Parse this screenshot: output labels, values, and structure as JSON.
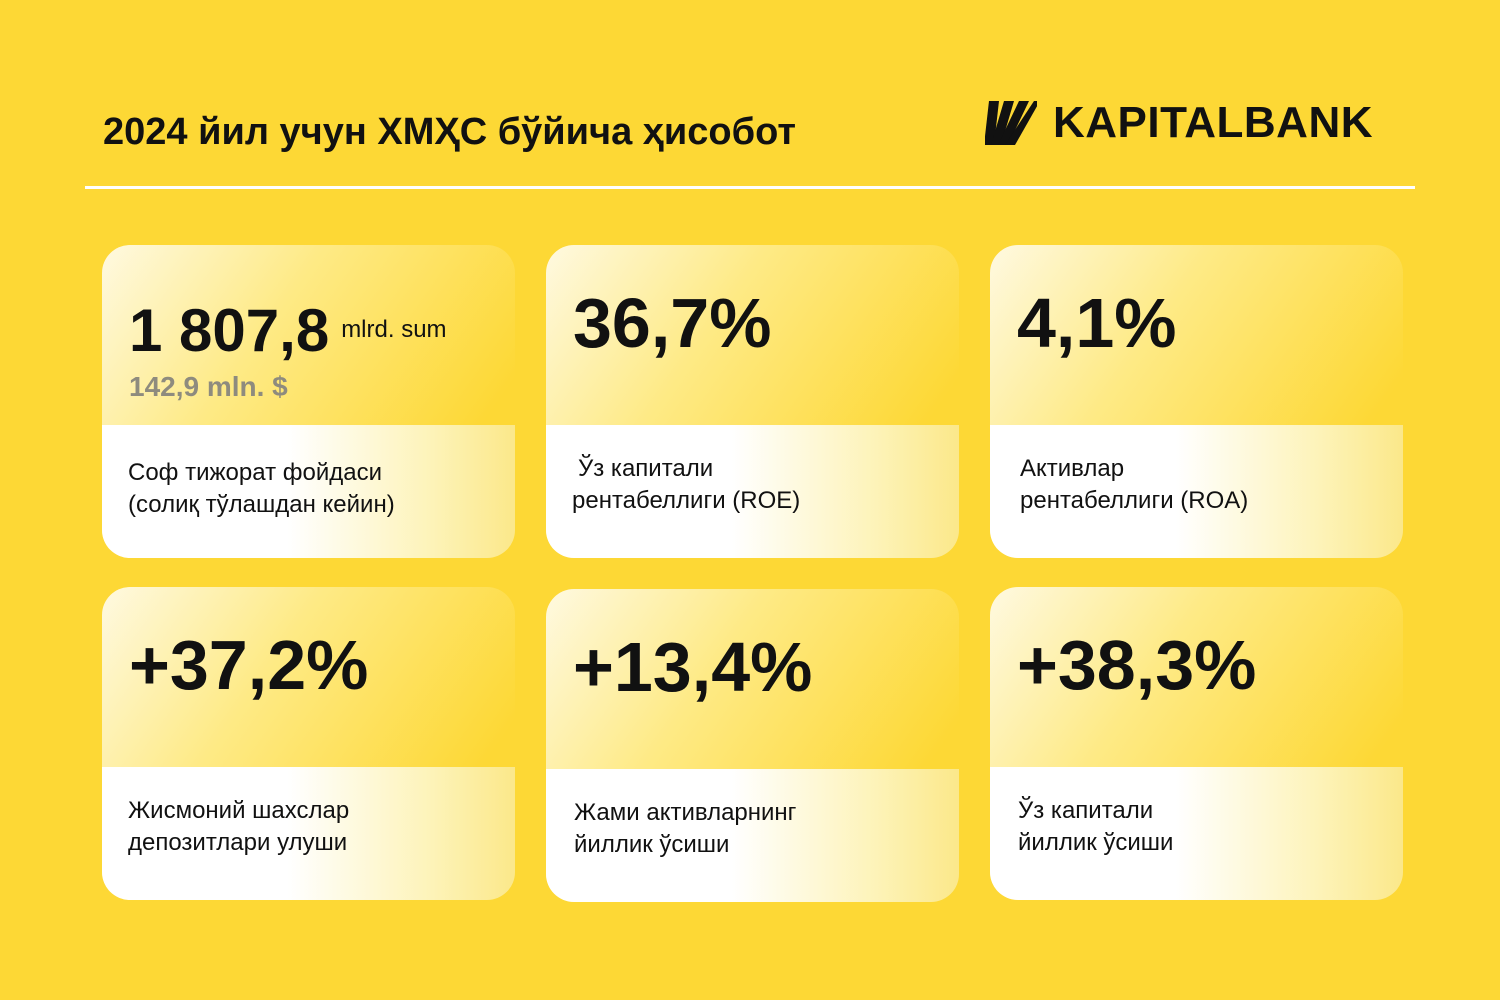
{
  "header": {
    "title": "2024 йил учун ХМҲС бўйича ҳисобот",
    "logo_text": "KAPITALBANK",
    "logo_icon": "kapitalbank-stripes-logo"
  },
  "colors": {
    "background": "#FDD835",
    "text": "#111111",
    "secondary_text": "#8E8B7E",
    "divider": "#FFFFFF"
  },
  "cards": [
    {
      "value": "1 807,8",
      "unit": "mlrd. sum",
      "secondary": "142,9 mln. $",
      "label_line1": "Соф тижорат фойдаси",
      "label_line2": "(солиқ тўлашдан кейин)"
    },
    {
      "value": "36,7%",
      "label_line1": "Ўз капитали",
      "label_line2": "рентабеллиги (ROE)"
    },
    {
      "value": "4,1%",
      "label_line1": "Активлар",
      "label_line2": "рентабеллиги (ROA)"
    },
    {
      "value": "+37,2%",
      "label_line1": "Жисмоний шахслар",
      "label_line2": "депозитлари улуши"
    },
    {
      "value": "+13,4%",
      "label_line1": "Жами активларнинг",
      "label_line2": "йиллик ўсиши"
    },
    {
      "value": "+38,3%",
      "label_line1": "Ўз капитали",
      "label_line2": "йиллик ўсиши"
    }
  ]
}
